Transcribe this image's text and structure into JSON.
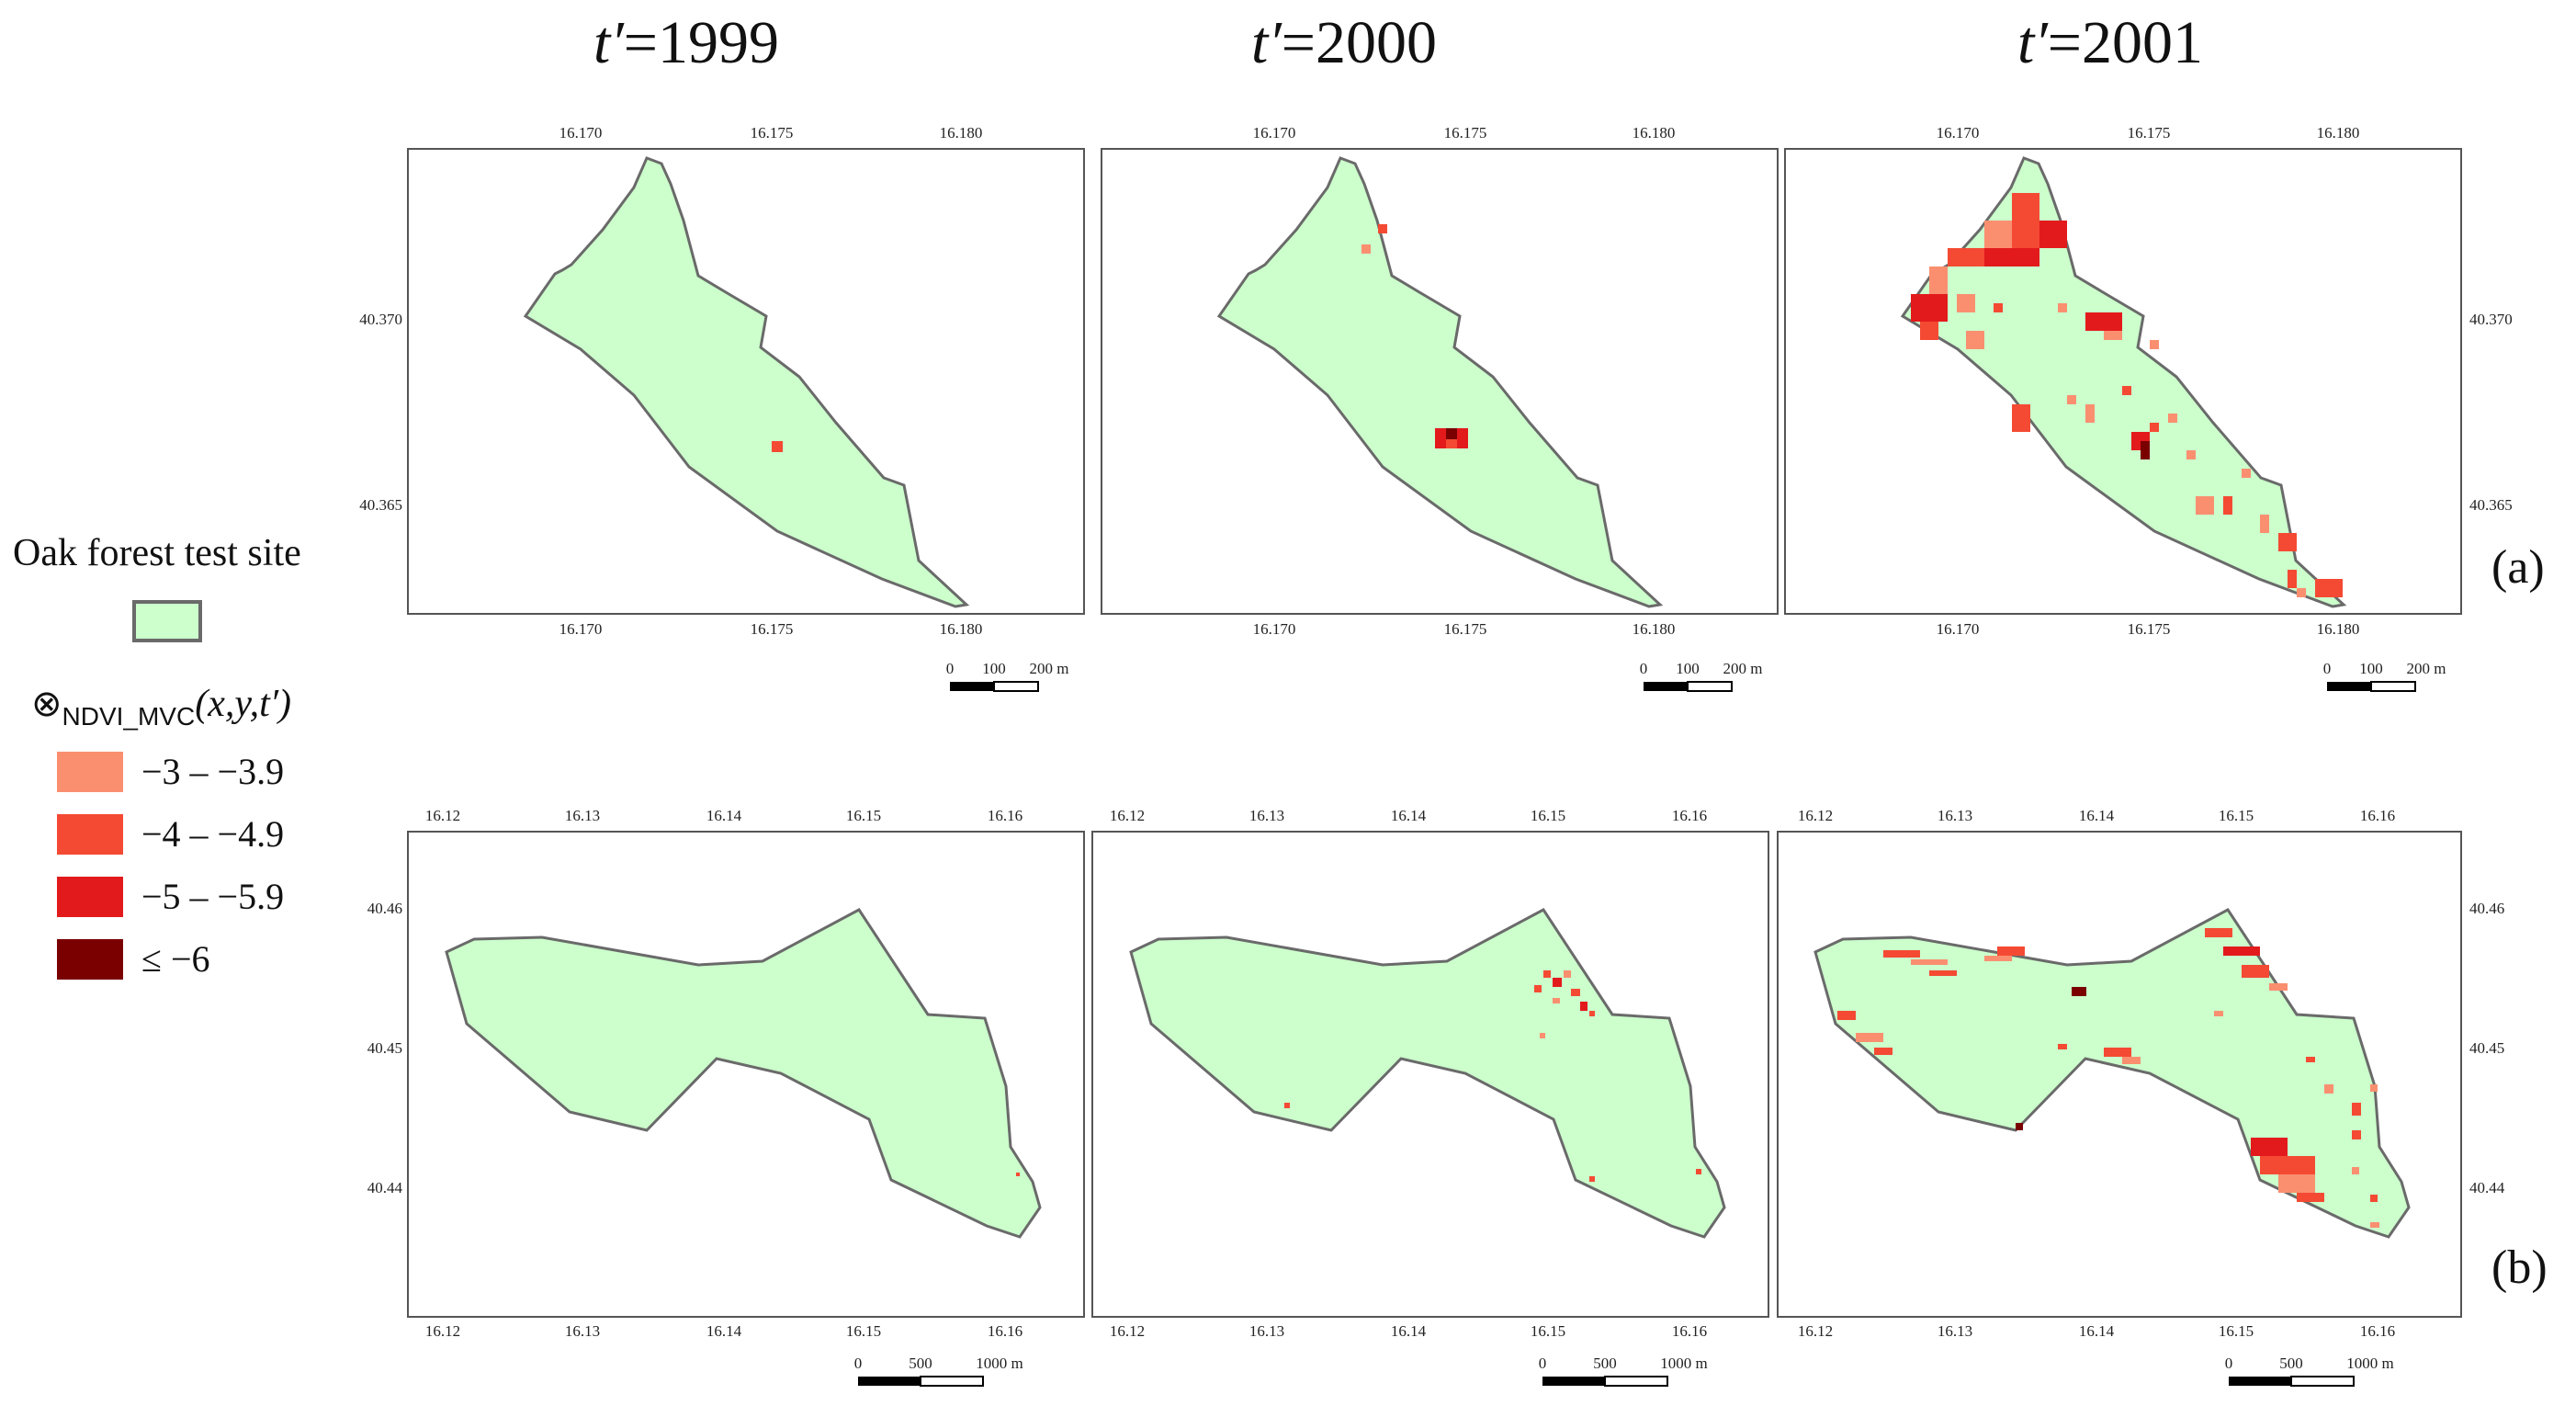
{
  "titles": {
    "col1": {
      "prefix": "t′",
      "year": "=1999"
    },
    "col2": {
      "prefix": "t′",
      "year": "=2000"
    },
    "col3": {
      "prefix": "t′",
      "year": "=2001"
    }
  },
  "panel_labels": {
    "a": "(a)",
    "b": "(b)"
  },
  "legend": {
    "site_label": "Oak forest test site",
    "site_color": "#ccffcc",
    "variable": {
      "symbol": "⊗",
      "subscript": "NDVI_MVC",
      "args": "(x,y,t′)"
    },
    "classes": [
      {
        "label": "−3  – −3.9",
        "color": "#fa8f70"
      },
      {
        "label": "−4  – −4.9",
        "color": "#f44a33"
      },
      {
        "label": "−5  – −5.9",
        "color": "#e31a1c"
      },
      {
        "label": "≤ −6",
        "color": "#7a0000"
      }
    ]
  },
  "row_a": {
    "lon_ticks": [
      "16.170",
      "16.175",
      "16.180"
    ],
    "lat_ticks": [
      "40.370",
      "40.365"
    ],
    "scale": {
      "zero": "0",
      "mid": "100",
      "end": "200 m"
    }
  },
  "row_b": {
    "lon_ticks": [
      "16.12",
      "16.13",
      "16.14",
      "16.15",
      "16.16"
    ],
    "lat_ticks": [
      "40.46",
      "40.45",
      "40.44"
    ],
    "scale": {
      "zero": "0",
      "mid": "500",
      "end": "1000 m"
    }
  },
  "colors": {
    "frame": "#555555",
    "outline": "#6a6a6a",
    "site_fill": "#ccffcc"
  }
}
